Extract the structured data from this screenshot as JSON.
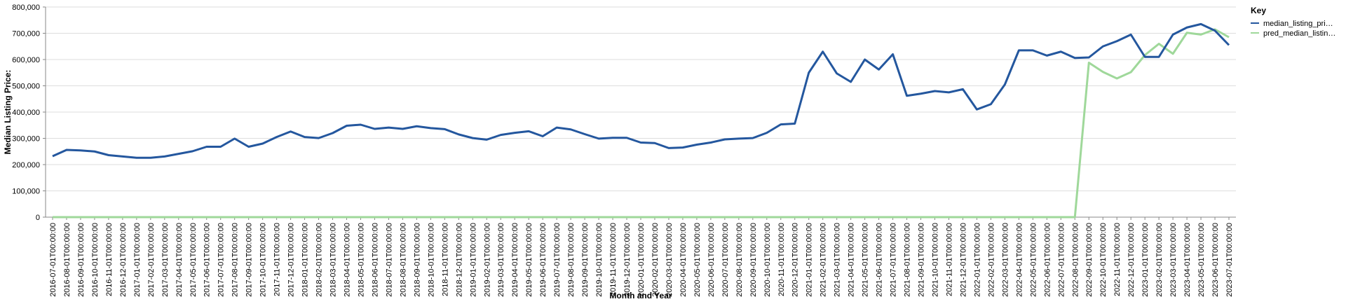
{
  "chart_data": {
    "type": "line",
    "x_label": "Month and Year",
    "y_label": "Median Listing Price:",
    "legend_title": "Key",
    "legend_position": "right",
    "grid": true,
    "categories": [
      "2016-07-01T00:00:00",
      "2016-08-01T00:00:00",
      "2016-09-01T00:00:00",
      "2016-10-01T00:00:00",
      "2016-11-01T00:00:00",
      "2016-12-01T00:00:00",
      "2017-01-01T00:00:00",
      "2017-02-01T00:00:00",
      "2017-03-01T00:00:00",
      "2017-04-01T00:00:00",
      "2017-05-01T00:00:00",
      "2017-06-01T00:00:00",
      "2017-07-01T00:00:00",
      "2017-08-01T00:00:00",
      "2017-09-01T00:00:00",
      "2017-10-01T00:00:00",
      "2017-11-01T00:00:00",
      "2017-12-01T00:00:00",
      "2018-01-01T00:00:00",
      "2018-02-01T00:00:00",
      "2018-03-01T00:00:00",
      "2018-04-01T00:00:00",
      "2018-05-01T00:00:00",
      "2018-06-01T00:00:00",
      "2018-07-01T00:00:00",
      "2018-08-01T00:00:00",
      "2018-09-01T00:00:00",
      "2018-10-01T00:00:00",
      "2018-11-01T00:00:00",
      "2018-12-01T00:00:00",
      "2019-01-01T00:00:00",
      "2019-02-01T00:00:00",
      "2019-03-01T00:00:00",
      "2019-04-01T00:00:00",
      "2019-05-01T00:00:00",
      "2019-06-01T00:00:00",
      "2019-07-01T00:00:00",
      "2019-08-01T00:00:00",
      "2019-09-01T00:00:00",
      "2019-10-01T00:00:00",
      "2019-11-01T00:00:00",
      "2019-12-01T00:00:00",
      "2020-01-01T00:00:00",
      "2020-02-01T00:00:00",
      "2020-03-01T00:00:00",
      "2020-04-01T00:00:00",
      "2020-05-01T00:00:00",
      "2020-06-01T00:00:00",
      "2020-07-01T00:00:00",
      "2020-08-01T00:00:00",
      "2020-09-01T00:00:00",
      "2020-10-01T00:00:00",
      "2020-11-01T00:00:00",
      "2020-12-01T00:00:00",
      "2021-01-01T00:00:00",
      "2021-02-01T00:00:00",
      "2021-03-01T00:00:00",
      "2021-04-01T00:00:00",
      "2021-05-01T00:00:00",
      "2021-06-01T00:00:00",
      "2021-07-01T00:00:00",
      "2021-08-01T00:00:00",
      "2021-09-01T00:00:00",
      "2021-10-01T00:00:00",
      "2021-11-01T00:00:00",
      "2021-12-01T00:00:00",
      "2022-01-01T00:00:00",
      "2022-02-01T00:00:00",
      "2022-03-01T00:00:00",
      "2022-04-01T00:00:00",
      "2022-05-01T00:00:00",
      "2022-06-01T00:00:00",
      "2022-07-01T00:00:00",
      "2022-08-01T00:00:00",
      "2022-09-01T00:00:00",
      "2022-10-01T00:00:00",
      "2022-11-01T00:00:00",
      "2022-12-01T00:00:00",
      "2023-01-01T00:00:00",
      "2023-02-01T00:00:00",
      "2023-03-01T00:00:00",
      "2023-04-01T00:00:00",
      "2023-05-01T00:00:00",
      "2023-06-01T00:00:00",
      "2023-07-01T00:00:00"
    ],
    "series": [
      {
        "name": "median_listing_pri…",
        "color": "#24579e",
        "values": [
          232000,
          256000,
          254000,
          250000,
          236000,
          231000,
          226000,
          226000,
          231000,
          241000,
          251000,
          268000,
          268000,
          299000,
          268000,
          280000,
          305000,
          326000,
          305000,
          301000,
          320000,
          348000,
          352000,
          336000,
          341000,
          336000,
          346000,
          339000,
          335000,
          315000,
          301000,
          295000,
          313000,
          321000,
          327000,
          308000,
          341000,
          334000,
          316000,
          299000,
          302000,
          302000,
          284000,
          282000,
          263000,
          265000,
          276000,
          284000,
          296000,
          299000,
          301000,
          321000,
          353000,
          356000,
          550000,
          630000,
          547000,
          515000,
          600000,
          562000,
          620000,
          462000,
          470000,
          480000,
          475000,
          487000,
          410000,
          430000,
          505000,
          635000,
          635000,
          615000,
          630000,
          606000,
          608000,
          650000,
          670000,
          695000,
          610000,
          610000,
          695000,
          722000,
          735000,
          710000,
          655000
        ]
      },
      {
        "name": "pred_median_listin…",
        "color": "#9fd89a",
        "values": [
          0,
          0,
          0,
          0,
          0,
          0,
          0,
          0,
          0,
          0,
          0,
          0,
          0,
          0,
          0,
          0,
          0,
          0,
          0,
          0,
          0,
          0,
          0,
          0,
          0,
          0,
          0,
          0,
          0,
          0,
          0,
          0,
          0,
          0,
          0,
          0,
          0,
          0,
          0,
          0,
          0,
          0,
          0,
          0,
          0,
          0,
          0,
          0,
          0,
          0,
          0,
          0,
          0,
          0,
          0,
          0,
          0,
          0,
          0,
          0,
          0,
          0,
          0,
          0,
          0,
          0,
          0,
          0,
          0,
          0,
          0,
          0,
          0,
          0,
          588000,
          553000,
          528000,
          552000,
          617000,
          660000,
          622000,
          702000,
          695000,
          715000,
          685000
        ]
      }
    ],
    "ylim": [
      0,
      800000
    ],
    "yticks": [
      0,
      {
        "value": 100000,
        "label": "100,000"
      },
      {
        "value": 200000,
        "label": "200,000"
      },
      {
        "value": 300000,
        "label": "300,000"
      },
      {
        "value": 400000,
        "label": "400,000"
      },
      {
        "value": 500000,
        "label": "500,000"
      },
      {
        "value": 600000,
        "label": "600,000"
      },
      {
        "value": 700000,
        "label": "700,000"
      },
      {
        "value": 800000,
        "label": "800,000"
      }
    ]
  }
}
